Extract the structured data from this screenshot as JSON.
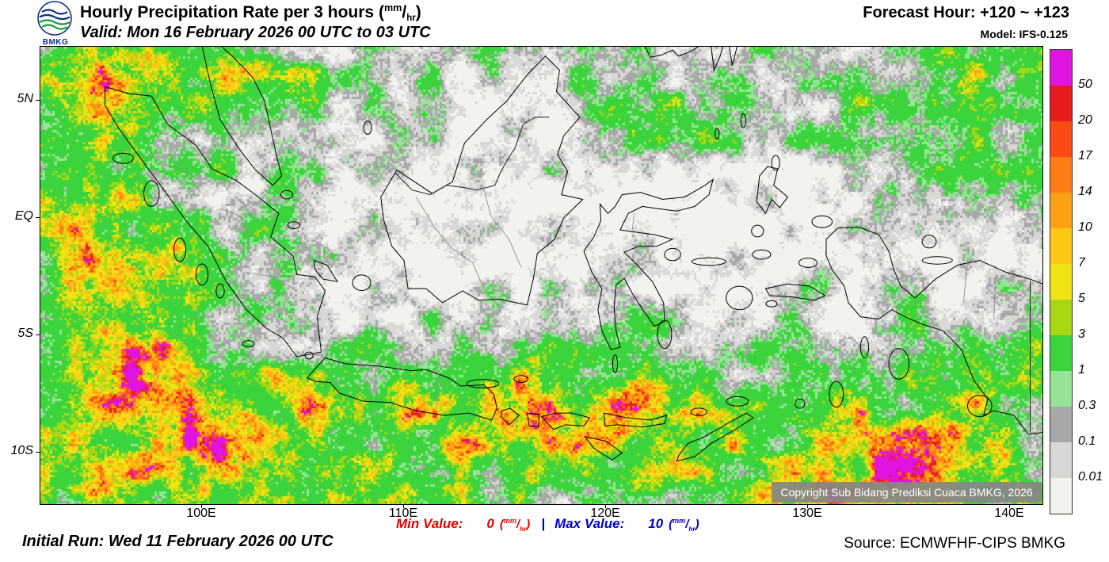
{
  "header": {
    "logo": "BMKG",
    "title": "Hourly Precipitation Rate per 3 hours",
    "unit_numerator": "mm",
    "unit_denominator": "hr",
    "valid_line": "Valid: Mon 16 February 2026 00 UTC to 03 UTC",
    "forecast_hour": "Forecast Hour: +120 ~ +123",
    "model": "Model: IFS-0.125"
  },
  "map": {
    "x_tick_labels": [
      "100E",
      "110E",
      "120E",
      "130E",
      "140E"
    ],
    "y_tick_labels": [
      "5N",
      "EQ",
      "5S",
      "10S"
    ],
    "copyright": "Copyright Sub Bidang Prediksi Cuaca BMKG, 2026"
  },
  "legend": {
    "tick_labels": [
      "50",
      "20",
      "17",
      "14",
      "10",
      "7",
      "5",
      "3",
      "1",
      "0.3",
      "0.1",
      "0.01"
    ],
    "segment_colors": [
      "#e014e0",
      "#e81c1c",
      "#fc4a14",
      "#ff7c14",
      "#ffa014",
      "#ffc814",
      "#f0e414",
      "#a8d814",
      "#3cd43c",
      "#96e496",
      "#a8a8a8",
      "#d8d8d6",
      "#f2f2ee"
    ]
  },
  "footer": {
    "min_label": "Min Value:",
    "min_value": "0",
    "separator": "|",
    "max_label": "Max Value:",
    "max_value": "10",
    "unit_numerator": "mm",
    "unit_denominator": "hr",
    "initial_run": "Initial Run: Wed 11 February 2026 00 UTC",
    "source": "Source: ECMWFHF-CIPS BMKG"
  },
  "colors": {
    "min_color": "#e60000",
    "max_color": "#0000cd",
    "logo_blue": "#0d2f86",
    "logo_green": "#1d9a3c"
  }
}
